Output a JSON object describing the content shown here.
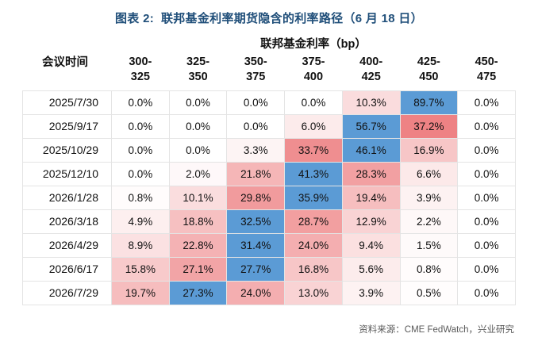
{
  "title": "图表 2:  联邦基金利率期货隐含的利率路径（6 月 18 日）",
  "source": "资料来源：CME FedWatch，兴业研究",
  "colors": {
    "title_navy": "#1F4E79",
    "max_cell_blue": "#5B9BD5",
    "heat_red": "#E8595C",
    "grid_line": "#E4E4E4",
    "source_gray": "#595959"
  },
  "chart_data": {
    "type": "heatmap",
    "figure_label": "图表 2",
    "title": "联邦基金利率期货隐含的利率路径（6 月 18 日）",
    "row_axis_label": "会议时间",
    "column_group_label": "联邦基金利率（bp）",
    "columns": [
      "300-325",
      "325-350",
      "350-375",
      "375-400",
      "400-425",
      "425-450",
      "450-475"
    ],
    "meetings": [
      "2025/7/30",
      "2025/9/17",
      "2025/10/29",
      "2025/12/10",
      "2026/1/28",
      "2026/3/18",
      "2026/4/29",
      "2026/6/17",
      "2026/7/29"
    ],
    "values_percent": [
      [
        0.0,
        0.0,
        0.0,
        0.0,
        10.3,
        89.7,
        0.0
      ],
      [
        0.0,
        0.0,
        0.0,
        6.0,
        56.7,
        37.2,
        0.0
      ],
      [
        0.0,
        0.0,
        3.3,
        33.7,
        46.1,
        16.9,
        0.0
      ],
      [
        0.0,
        2.0,
        21.8,
        41.3,
        28.3,
        6.6,
        0.0
      ],
      [
        0.8,
        10.1,
        29.8,
        35.9,
        19.4,
        3.9,
        0.0
      ],
      [
        4.9,
        18.8,
        32.5,
        28.7,
        12.9,
        2.2,
        0.0
      ],
      [
        8.9,
        22.8,
        31.4,
        24.0,
        9.4,
        1.5,
        0.0
      ],
      [
        15.8,
        27.1,
        27.7,
        16.8,
        5.6,
        0.8,
        0.0
      ],
      [
        19.7,
        27.3,
        24.0,
        13.0,
        3.9,
        0.5,
        0.0
      ]
    ],
    "unit": "%",
    "legend": "row maximum highlighted blue; red intensity scales with probability"
  }
}
